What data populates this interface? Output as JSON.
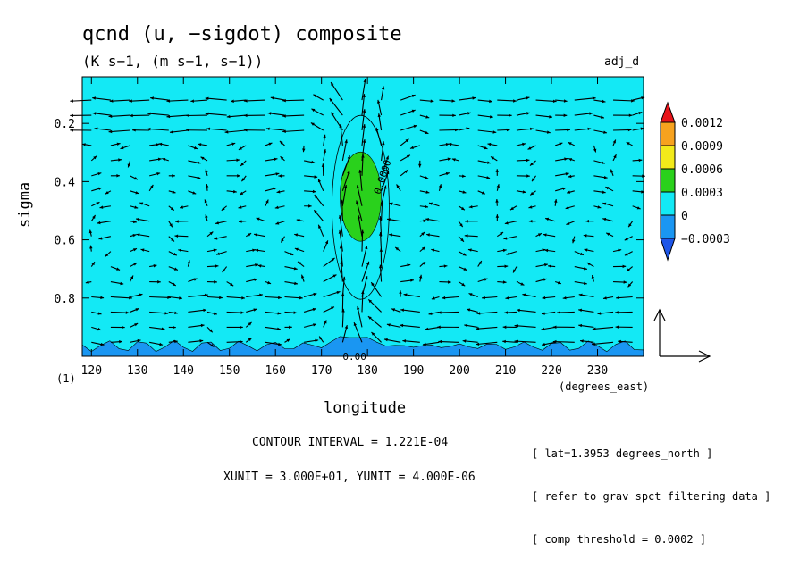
{
  "header": {
    "title": "qcnd (u, −sigdot) composite",
    "units": "(K s−1, (m s−1, s−1))",
    "tag": "adj_d"
  },
  "chart_data": {
    "type": "heatmap",
    "overlay": "vector",
    "xlabel": "longitude",
    "xunit": "(degrees_east)",
    "ylabel": "sigma",
    "xlim": [
      118,
      240
    ],
    "ylim": [
      1.0,
      0.04
    ],
    "x_ticks": [
      120,
      130,
      140,
      150,
      160,
      170,
      180,
      190,
      200,
      210,
      220,
      230
    ],
    "y_ticks": [
      0.2,
      0.4,
      0.6,
      0.8
    ],
    "contour_interval": "1.221E-04",
    "contour_labels": [
      "0.00",
      "0.0000",
      "0.00"
    ],
    "colorbar": {
      "levels": [
        "0.0012",
        "0.0009",
        "0.0006",
        "0.0003",
        "0",
        "−0.0003"
      ],
      "colors": [
        "#e8141a",
        "#f7a21e",
        "#f2ea1a",
        "#2ad11c",
        "#13e9f5",
        "#1a96f2",
        "#1e56e8"
      ]
    },
    "field": {
      "background": "#13e9f5",
      "positive_center": [
        178.5,
        0.47
      ],
      "positive_max": 0.00045,
      "negative_layer_top": 0.965
    },
    "vector_scale": {
      "xunit": "3.000E+01",
      "yunit": "4.000E-06"
    }
  },
  "footer": {
    "contour_interval": "CONTOUR INTERVAL = 1.221E-04",
    "vector_units": "XUNIT = 3.000E+01, YUNIT = 4.000E-06",
    "panel_number": "(1)",
    "notes": [
      "[ lat=1.3953 degrees_north ]",
      "[ refer to grav spct filtering data ]",
      "[ comp threshold = 0.0002 ]"
    ]
  }
}
